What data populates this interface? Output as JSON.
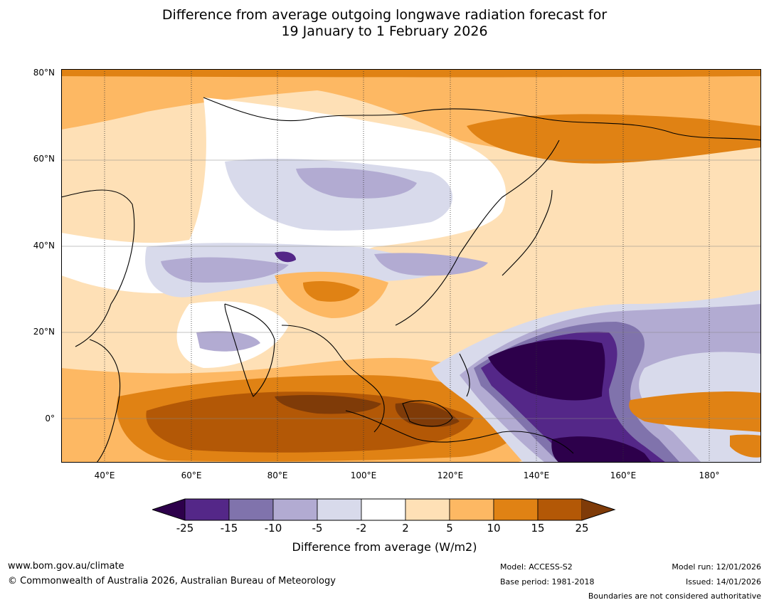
{
  "title": {
    "line1": "Difference from average outgoing longwave radiation forecast for",
    "line2": "19 January to 1 February 2026"
  },
  "map": {
    "lat_labels": [
      "80°N",
      "60°N",
      "40°N",
      "20°N",
      "0°"
    ],
    "lon_labels": [
      "40°E",
      "60°E",
      "80°E",
      "100°E",
      "120°E",
      "140°E",
      "160°E",
      "180°"
    ],
    "lat_range": [
      -10,
      80
    ],
    "lon_range": [
      30,
      192
    ]
  },
  "legend": {
    "ticks": [
      "-25",
      "-15",
      "-10",
      "-5",
      "-2",
      "2",
      "5",
      "10",
      "15",
      "25"
    ],
    "colors": [
      "#2d004b",
      "#542788",
      "#8073ac",
      "#b2abd2",
      "#d8daeb",
      "#ffffff",
      "#fee0b6",
      "#fdb863",
      "#e08214",
      "#b35806",
      "#7f3b08"
    ],
    "label": "Difference from average (W/m2)"
  },
  "footer": {
    "website": "www.bom.gov.au/climate",
    "copyright": "© Commonwealth of Australia 2026, Australian Bureau of Meteorology",
    "model": "Model: ACCESS-S2",
    "base_period": "Base period: 1981-2018",
    "model_run": "Model run: 12/01/2026",
    "issued": "Issued: 14/01/2026",
    "disclaimer": "Boundaries are not considered authoritative"
  }
}
